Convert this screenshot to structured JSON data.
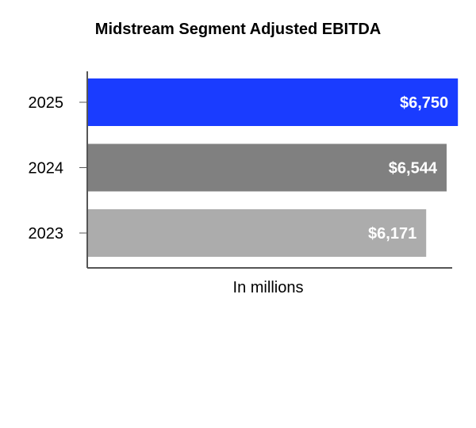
{
  "chart_data": {
    "type": "bar",
    "orientation": "horizontal",
    "title": "Midstream Segment Adjusted EBITDA",
    "xlabel": "In millions",
    "ylabel": "",
    "categories": [
      "2025",
      "2024",
      "2023"
    ],
    "values": [
      6750,
      6544,
      6171
    ],
    "value_labels": [
      "$6,750",
      "$6,544",
      "$6,171"
    ],
    "colors": [
      "#1a3cff",
      "#808080",
      "#acacac"
    ],
    "xlim": [
      0,
      6950
    ],
    "grid": false,
    "legend": "none"
  }
}
